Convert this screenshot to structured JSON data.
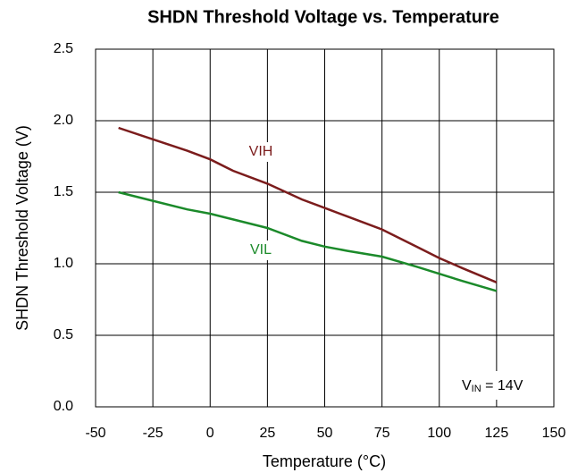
{
  "chart_data": {
    "type": "line",
    "title": "SHDN Threshold Voltage vs. Temperature",
    "x_label": "Temperature (°C)",
    "y_label": "SHDN Threshold Voltage (V)",
    "x": [
      -40,
      -25,
      -10,
      0,
      10,
      25,
      40,
      50,
      60,
      75,
      90,
      100,
      110,
      125
    ],
    "series": [
      {
        "name": "VIH",
        "color": "#7b1c1c",
        "values": [
          1.95,
          1.87,
          1.79,
          1.73,
          1.65,
          1.56,
          1.45,
          1.39,
          1.33,
          1.24,
          1.12,
          1.04,
          0.97,
          0.87
        ]
      },
      {
        "name": "VIL",
        "color": "#1b8a2a",
        "values": [
          1.5,
          1.44,
          1.38,
          1.35,
          1.31,
          1.25,
          1.16,
          1.12,
          1.09,
          1.05,
          0.98,
          0.93,
          0.88,
          0.81
        ]
      }
    ],
    "xlim": [
      -50,
      150
    ],
    "xticks": [
      -50,
      -25,
      0,
      25,
      50,
      75,
      100,
      125,
      150
    ],
    "ylim": [
      0,
      2.5
    ],
    "yticks": [
      {
        "value": 0,
        "label": "0.0"
      },
      0.5,
      {
        "value": 1,
        "label": "1.0"
      },
      1.5,
      {
        "value": 2,
        "label": "2.0"
      },
      2.5
    ],
    "grid": true,
    "annotation": {
      "main": "V",
      "sub": "IN",
      "rest": " = 14V"
    }
  }
}
